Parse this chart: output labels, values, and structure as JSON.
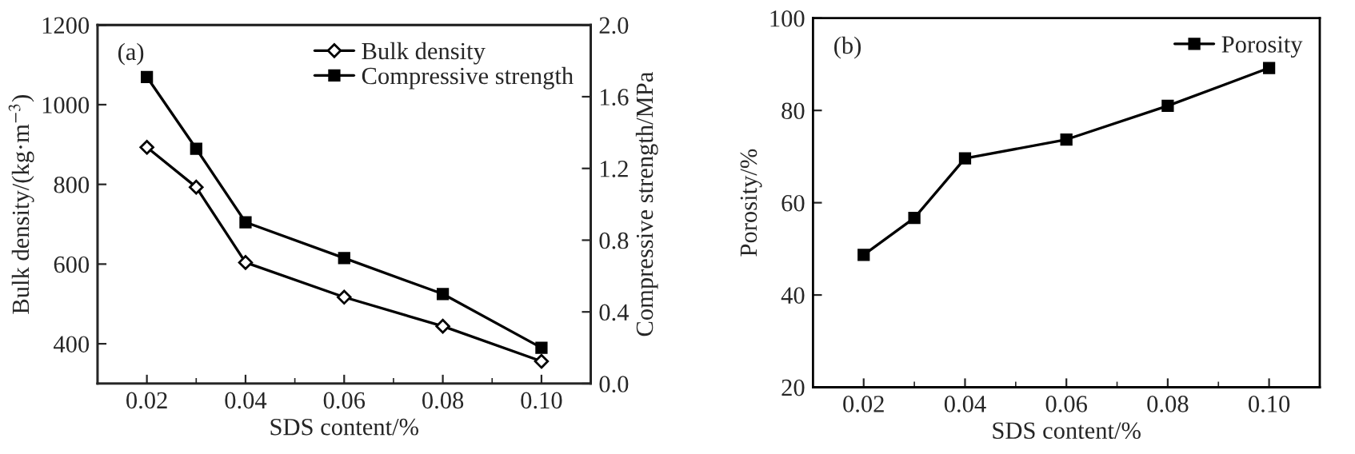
{
  "chart_data": [
    {
      "type": "line",
      "xlabel": "SDS content/%",
      "ylabel": "Bulk density/(kg·m$^{−3}$)",
      "y2label": "Compressive strength/MPa",
      "annotations": [
        "(a)"
      ],
      "x": [
        0.02,
        0.03,
        0.04,
        0.06,
        0.08,
        0.1
      ],
      "series": [
        {
          "name": "Bulk density",
          "color": "#000000",
          "marker": "diamond",
          "values": [
            893,
            793,
            604,
            517,
            444,
            356
          ]
        },
        {
          "name": "Compressive strength",
          "color": "#000000",
          "marker": "square",
          "axis": "y2",
          "values": [
            1.71,
            1.31,
            0.9,
            0.7,
            0.5,
            0.2
          ]
        }
      ],
      "xlim": [
        0.01,
        0.11
      ],
      "xticks": [
        0.02,
        {
          "value": 0.03,
          "label": null
        },
        0.04,
        {
          "value": 0.05,
          "label": null
        },
        0.06,
        {
          "value": 0.07,
          "label": null
        },
        0.08,
        {
          "value": 0.09,
          "label": null
        },
        {
          "value": 0.1,
          "label": "0.10"
        }
      ],
      "ylim": [
        300,
        1200
      ],
      "yticks": [
        400,
        600,
        800,
        1000,
        1200
      ],
      "y2lim": [
        0,
        2
      ],
      "y2ticks": [
        {
          "value": 0,
          "label": "0.0"
        },
        0.4,
        0.8,
        1.2,
        1.6,
        {
          "value": 2,
          "label": "2.0"
        }
      ],
      "legend": "top right",
      "grid": false,
      "line_style": "solid"
    },
    {
      "type": "line",
      "xlabel": "SDS content/%",
      "ylabel": "Porosity/%",
      "annotations": [
        "(b)"
      ],
      "x": [
        0.02,
        0.03,
        0.04,
        0.06,
        0.08,
        0.1
      ],
      "series": [
        {
          "name": "Porosity",
          "color": "#000000",
          "marker": "square",
          "values": [
            48.7,
            56.7,
            69.6,
            73.7,
            81,
            89.2
          ]
        }
      ],
      "xlim": [
        0.01,
        0.11
      ],
      "xticks": [
        0.02,
        {
          "value": 0.03,
          "label": null
        },
        0.04,
        {
          "value": 0.05,
          "label": null
        },
        0.06,
        {
          "value": 0.07,
          "label": null
        },
        0.08,
        {
          "value": 0.09,
          "label": null
        },
        {
          "value": 0.1,
          "label": "0.10"
        }
      ],
      "ylim": [
        20,
        100
      ],
      "yticks": [
        20,
        40,
        60,
        80,
        100
      ],
      "legend": "top right",
      "grid": false,
      "line_style": "solid"
    }
  ]
}
